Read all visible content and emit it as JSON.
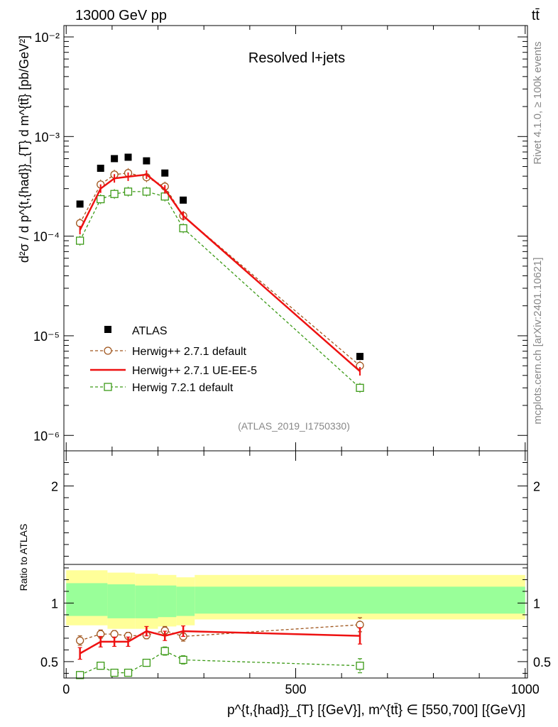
{
  "header": {
    "energy_label": "13000 GeV pp",
    "process_label": "tt̄",
    "rivet_label": "Rivet 4.1.0, ≥ 100k events",
    "mcplots_label": "mcplots.cern.ch [arXiv:2401.10621]",
    "analysis_label": "(ATLAS_2019_I1750330)"
  },
  "colors": {
    "atlas": "#000000",
    "herwigpp_default": "#a0561e",
    "herwigpp_ueee5": "#ee1111",
    "herwig7": "#3c9a17",
    "band_outer": "#ffff99",
    "band_inner": "#99ff99"
  },
  "chart_data": [
    {
      "type": "line",
      "panel": "main",
      "title": "Resolved l+jets",
      "xlabel": "",
      "ylabel": "d²σ / d p^{t,{had}}_{T} d m^{tt̄} [pb/GeV²]",
      "ylog": true,
      "xlim": [
        -5,
        1005
      ],
      "ylim": [
        7e-07,
        0.013
      ],
      "y_tick_labels": [
        "10⁻⁶",
        "10⁻⁵",
        "10⁻⁴",
        "10⁻³",
        "10⁻²"
      ],
      "y_tick_values": [
        1e-06,
        1e-05,
        0.0001,
        0.001,
        0.01
      ],
      "x": [
        30,
        75,
        105,
        135,
        175,
        215,
        255,
        640
      ],
      "series": [
        {
          "name": "ATLAS",
          "style": "filled-square",
          "values": [
            0.00021,
            0.00048,
            0.0006,
            0.00062,
            0.00057,
            0.00043,
            0.00023,
            6.2e-06
          ]
        },
        {
          "name": "Herwig++ 2.7.1 default",
          "style": "dashed-open-circle",
          "values": [
            0.000135,
            0.00033,
            0.000415,
            0.00043,
            0.00039,
            0.000315,
            0.00016,
            5e-06
          ]
        },
        {
          "name": "Herwig++ 2.7.1 UE-EE-5",
          "style": "solid-line",
          "values": [
            0.000115,
            0.0003,
            0.00038,
            0.000395,
            0.000415,
            0.000295,
            0.00016,
            4.4e-06
          ]
        },
        {
          "name": "Herwig 7.2.1 default",
          "style": "dashed-open-square",
          "values": [
            9e-05,
            0.000235,
            0.000265,
            0.00028,
            0.00028,
            0.00025,
            0.00012,
            3e-06
          ]
        }
      ]
    },
    {
      "type": "line",
      "panel": "ratio",
      "xlabel": "p^{t,{had}}_{T} [{GeV}], m^{tt̄} ∈ [550,700] [{GeV}]",
      "ylabel": "Ratio to ATLAS",
      "xlim": [
        -5,
        1005
      ],
      "ylim": [
        0.36,
        2.3
      ],
      "x_tick_labels": [
        "0",
        "500",
        "1000"
      ],
      "x_tick_values": [
        0,
        500,
        1000
      ],
      "y_tick_labels": [
        "0.5",
        "1",
        "2"
      ],
      "y_tick_values": [
        0.5,
        1,
        2
      ],
      "band_edges": [
        0,
        90,
        150,
        200,
        240,
        280,
        1000
      ],
      "band_outer": [
        [
          0.81,
          1.28
        ],
        [
          0.78,
          1.26
        ],
        [
          0.78,
          1.25
        ],
        [
          0.8,
          1.24
        ],
        [
          0.81,
          1.22
        ],
        [
          0.86,
          1.24
        ]
      ],
      "band_inner": [
        [
          0.89,
          1.17
        ],
        [
          0.87,
          1.16
        ],
        [
          0.87,
          1.15
        ],
        [
          0.88,
          1.15
        ],
        [
          0.89,
          1.14
        ],
        [
          0.91,
          1.14
        ]
      ],
      "x": [
        30,
        75,
        105,
        135,
        175,
        215,
        255,
        640
      ],
      "series": [
        {
          "name": "Herwig++ 2.7.1 default",
          "style": "dashed-open-circle",
          "values": [
            0.68,
            0.735,
            0.735,
            0.72,
            0.725,
            0.765,
            0.715,
            0.815
          ],
          "errors": [
            0.04,
            0.035,
            0.03,
            0.03,
            0.03,
            0.035,
            0.04,
            0.06
          ]
        },
        {
          "name": "Herwig++ 2.7.1 UE-EE-5",
          "style": "solid-line",
          "values": [
            0.57,
            0.67,
            0.67,
            0.67,
            0.76,
            0.72,
            0.76,
            0.72
          ],
          "errors": [
            0.05,
            0.045,
            0.04,
            0.04,
            0.04,
            0.04,
            0.045,
            0.07
          ]
        },
        {
          "name": "Herwig 7.2.1 default",
          "style": "dashed-open-square",
          "values": [
            0.385,
            0.465,
            0.405,
            0.405,
            0.49,
            0.59,
            0.515,
            0.465
          ],
          "errors": [
            0.03,
            0.03,
            0.025,
            0.025,
            0.03,
            0.035,
            0.035,
            0.06
          ]
        }
      ]
    }
  ]
}
